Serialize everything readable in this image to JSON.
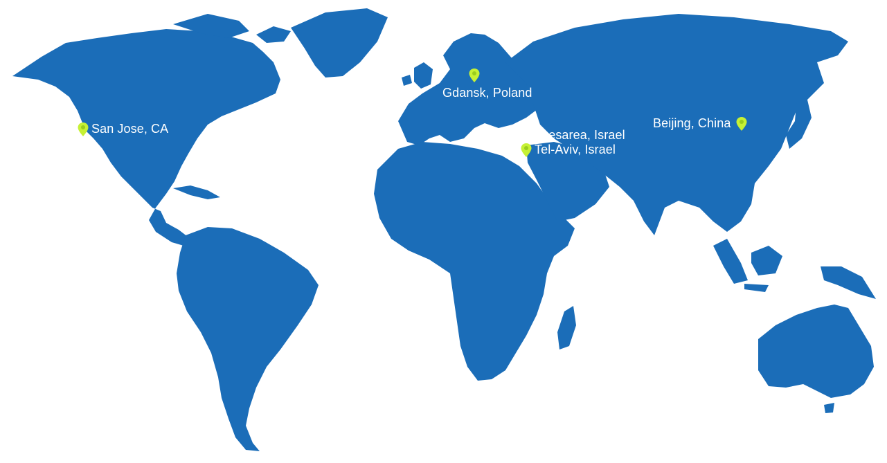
{
  "map": {
    "land_color": "#1B6DB8",
    "pin_color": "#C6F135",
    "label_color": "#FFFFFF"
  },
  "locations": {
    "san_jose": "San Jose, CA",
    "gdansk": "Gdansk, Poland",
    "caesarea": "Caesarea, Israel",
    "tel_aviv": "Tel-Aviv, Israel",
    "beijing": "Beijing, China"
  }
}
